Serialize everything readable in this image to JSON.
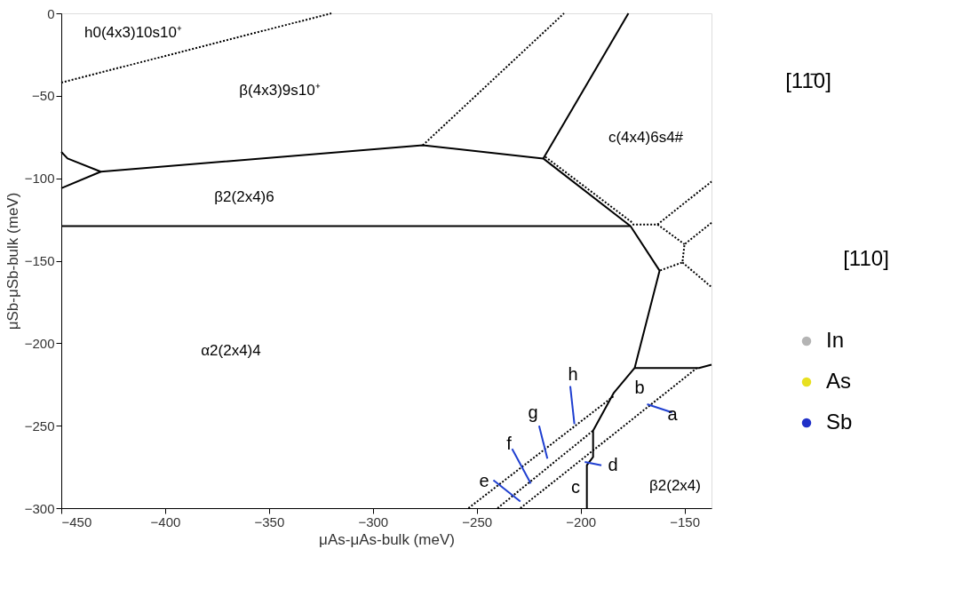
{
  "chart_data": {
    "type": "line",
    "xlabel": "μAs-μAs-bulk (meV)",
    "ylabel": "μSb-μSb-bulk (meV)",
    "xlim": [
      -450,
      -137
    ],
    "xticks": [
      -450,
      -400,
      -350,
      -300,
      -250,
      -200,
      -150
    ],
    "ylim": [
      -300,
      0
    ],
    "yticks": [
      -300,
      -250,
      -200,
      -150,
      -100,
      -50,
      0
    ],
    "grid": false,
    "legend": "right",
    "marker": "none",
    "series": [
      {
        "color": "#000000",
        "line_style": "solid",
        "x": [
          -450,
          -431
        ],
        "values": [
          -106,
          -96
        ]
      },
      {
        "color": "#000000",
        "line_style": "solid",
        "x": [
          -450,
          -447,
          -431,
          -276,
          -218,
          -176,
          -162,
          -174,
          -184,
          -194,
          -194,
          -197,
          -197
        ],
        "values": [
          -84,
          -88,
          -96,
          -80,
          -88,
          -129,
          -156,
          -215,
          -230,
          -253,
          -269,
          -274,
          -300
        ]
      },
      {
        "color": "#000000",
        "line_style": "solid",
        "x": [
          -218,
          -177
        ],
        "values": [
          -88,
          0
        ]
      },
      {
        "color": "#000000",
        "line_style": "solid",
        "x": [
          -450,
          -176
        ],
        "values": [
          -129,
          -129
        ]
      },
      {
        "color": "#000000",
        "line_style": "solid",
        "x": [
          -174,
          -143,
          -137
        ],
        "values": [
          -215,
          -215,
          -213
        ]
      },
      {
        "color": "#000000",
        "line_style": "dotted",
        "x": [
          -450,
          -320
        ],
        "values": [
          -42,
          0
        ]
      },
      {
        "color": "#000000",
        "line_style": "dotted",
        "x": [
          -276,
          -208
        ],
        "values": [
          -80,
          0
        ]
      },
      {
        "color": "#000000",
        "line_style": "dotted",
        "x": [
          -217,
          -175
        ],
        "values": [
          -87,
          -127
        ]
      },
      {
        "color": "#000000",
        "line_style": "dotted",
        "x": [
          -175,
          -163,
          -137
        ],
        "values": [
          -128,
          -128,
          -102
        ]
      },
      {
        "color": "#000000",
        "line_style": "dotted",
        "x": [
          -137,
          -150,
          -151,
          -162
        ],
        "values": [
          -127,
          -140,
          -151,
          -156
        ]
      },
      {
        "color": "#000000",
        "line_style": "dotted",
        "x": [
          -163,
          -150
        ],
        "values": [
          -128,
          -140
        ]
      },
      {
        "color": "#000000",
        "line_style": "dotted",
        "x": [
          -151,
          -137
        ],
        "values": [
          -151,
          -166
        ]
      },
      {
        "color": "#000000",
        "line_style": "dotted",
        "x": [
          -254,
          -184
        ],
        "values": [
          -300,
          -232
        ]
      },
      {
        "color": "#000000",
        "line_style": "dotted",
        "x": [
          -240,
          -194
        ],
        "values": [
          -300,
          -253
        ]
      },
      {
        "color": "#000000",
        "line_style": "dotted",
        "x": [
          -229,
          -144
        ],
        "values": [
          -300,
          -215
        ]
      },
      {
        "color": "#1f3fd0",
        "line_style": "solid",
        "x": [
          -205,
          -203
        ],
        "values": [
          -226,
          -249
        ]
      },
      {
        "color": "#1f3fd0",
        "line_style": "solid",
        "x": [
          -220,
          -216
        ],
        "values": [
          -250,
          -270
        ]
      },
      {
        "color": "#1f3fd0",
        "line_style": "solid",
        "x": [
          -233,
          -224
        ],
        "values": [
          -264,
          -285
        ]
      },
      {
        "color": "#1f3fd0",
        "line_style": "solid",
        "x": [
          -242,
          -229
        ],
        "values": [
          -283,
          -296
        ]
      },
      {
        "color": "#1f3fd0",
        "line_style": "solid",
        "x": [
          -198,
          -190
        ],
        "values": [
          -272,
          -274
        ]
      },
      {
        "color": "#1f3fd0",
        "line_style": "solid",
        "x": [
          -168,
          -156
        ],
        "values": [
          -237,
          -242
        ]
      },
      {
        "name": "In",
        "type": "scatter",
        "color": "#b4b4b4"
      },
      {
        "name": "As",
        "type": "scatter",
        "color": "#e8e020"
      },
      {
        "name": "Sb",
        "type": "scatter",
        "color": "#2030c8"
      }
    ],
    "annotations": [
      "h0(4x3)10s10⁺",
      "β(4x3)9s10⁺",
      "c(4x4)6s4#",
      "β2(2x4)6",
      "α2(2x4)4",
      "β2(2x4)",
      "h",
      "g",
      "f",
      "e",
      "d",
      "c",
      "b",
      "a",
      "[11̄0]",
      "[110]"
    ]
  }
}
